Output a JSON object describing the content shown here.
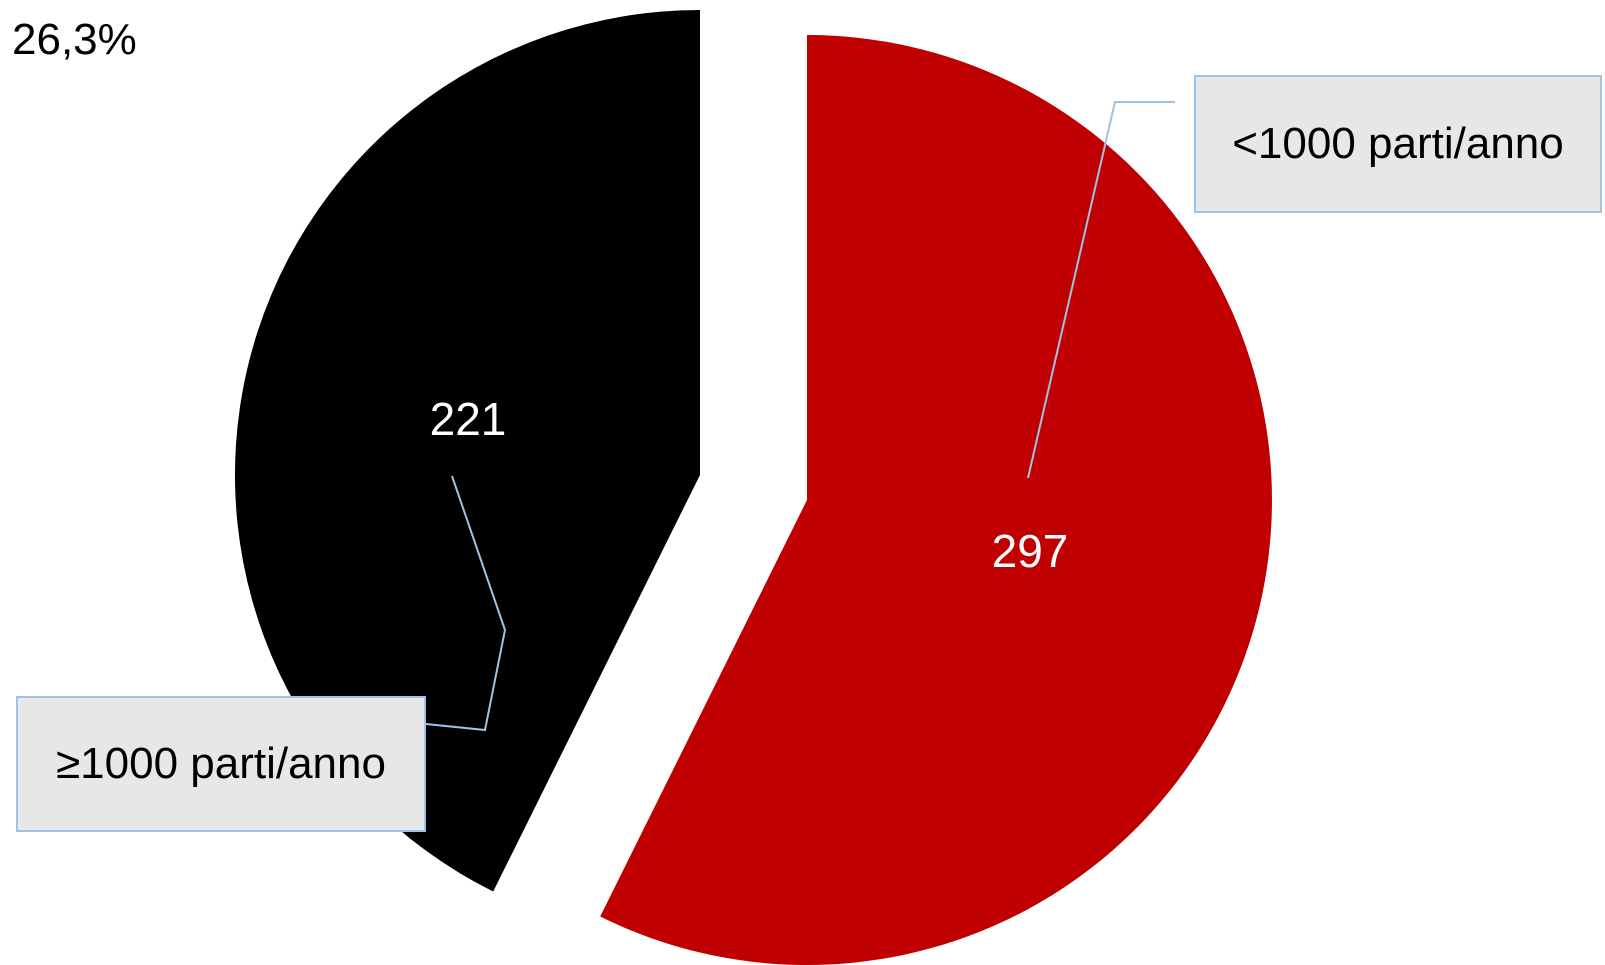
{
  "corner_label": "26,3%",
  "colors": {
    "large_hospitals": "#000000",
    "small_hospitals": "#c00000",
    "label_box_fill": "#e7e7e7",
    "leader_line": "#9dc3e6"
  },
  "chart_data": {
    "type": "pie",
    "slices": [
      {
        "category": "<1000 parti/anno",
        "value": 297,
        "value_label": "297",
        "color": "#c00000",
        "exploded": true
      },
      {
        "category": "≥1000 parti/anno",
        "value": 221,
        "value_label": "221",
        "color": "#000000",
        "exploded": true
      }
    ],
    "start_angle_deg": 0,
    "direction": "clockwise",
    "legend": "none",
    "labels_style": "callout-boxes-with-leader-lines"
  }
}
